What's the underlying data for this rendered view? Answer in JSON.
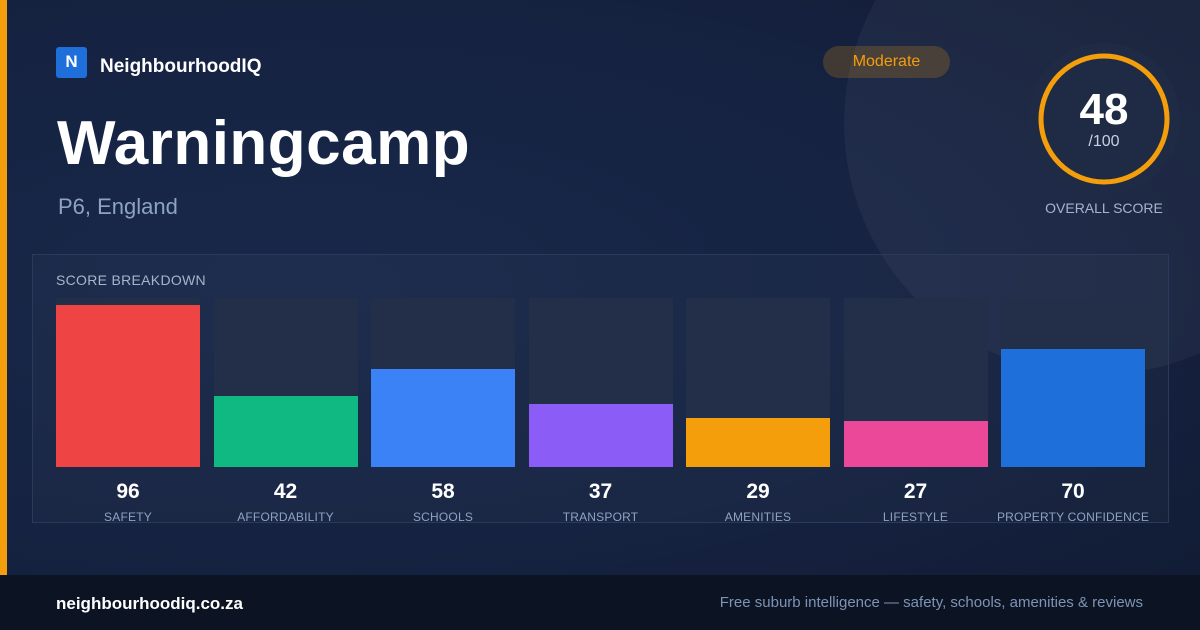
{
  "brand": {
    "mark": "N",
    "name": "NeighbourhoodIQ"
  },
  "location": {
    "name": "Warningcamp",
    "region": "P6, England"
  },
  "rating": {
    "label": "Moderate"
  },
  "overall": {
    "score": 48,
    "max": "/100",
    "caption": "OVERALL SCORE"
  },
  "breakdown": {
    "title": "SCORE BREAKDOWN"
  },
  "chart_data": {
    "type": "bar",
    "title": "SCORE BREAKDOWN",
    "categories": [
      "SAFETY",
      "AFFORDABILITY",
      "SCHOOLS",
      "TRANSPORT",
      "AMENITIES",
      "LIFESTYLE",
      "PROPERTY CONFIDENCE"
    ],
    "values": [
      96,
      42,
      58,
      37,
      29,
      27,
      70
    ],
    "ylim": [
      0,
      100
    ],
    "colors": [
      "#ef4444",
      "#10b981",
      "#3b82f6",
      "#8b5cf6",
      "#f59e0b",
      "#ec4899",
      "#1e6fd9"
    ]
  },
  "footer": {
    "url": "neighbourhoodiq.co.za",
    "tagline": "Free suburb intelligence — safety, schools, amenities & reviews"
  },
  "colors": {
    "accent": "#f59e0b",
    "brand": "#1e6fd9",
    "ring_track": "#2a3650"
  }
}
